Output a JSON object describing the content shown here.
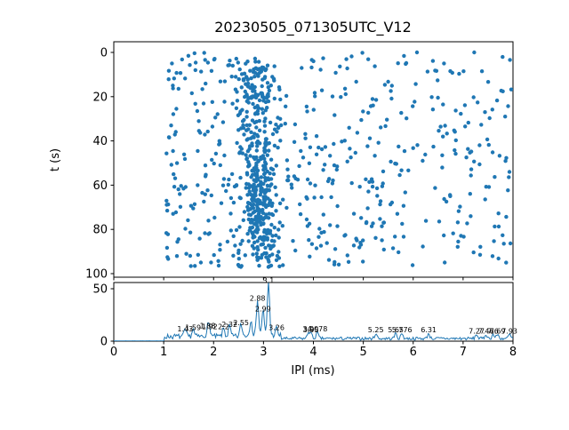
{
  "title": "20230505_071305UTC_V12",
  "figure": {
    "background": "#ffffff",
    "accent": "#1f77b4"
  },
  "scatter_plot": {
    "ylabel": "t (s)",
    "yticks": [
      0,
      20,
      40,
      60,
      80,
      100
    ],
    "xticks": [
      0,
      1,
      2,
      3,
      4,
      5,
      6,
      7,
      8
    ]
  },
  "hist_plot": {
    "xlabel": "IPI (ms)",
    "yticks": [
      0,
      50
    ],
    "xticks": [
      "0",
      "1",
      "2",
      "3",
      "4",
      "5",
      "6",
      "7",
      "8"
    ]
  },
  "chart_data": [
    {
      "type": "scatter",
      "title": "20230505_071305UTC_V12",
      "xlabel": "IPI (ms)",
      "ylabel": "t (s)",
      "xlim": [
        0,
        8
      ],
      "ylim": [
        100,
        0
      ],
      "y_inverted": true,
      "grid": false,
      "point_color": "#1f77b4",
      "point_radius": 2.2,
      "description": "Inter-pulse interval of detected clicks vs time; dense vertical band near IPI 2.8-3.2 ms",
      "distribution": {
        "seed": 42,
        "n_uniform": 520,
        "x_min": 1.05,
        "x_max": 8.0,
        "x_skew": 1.25,
        "t_min": 0,
        "t_max": 97,
        "band": {
          "n": 300,
          "x_mean": 2.85,
          "x_sd": 0.22,
          "t_min": 3,
          "t_max": 97
        },
        "cluster": {
          "n": 130,
          "x_mean": 2.92,
          "x_sd": 0.15,
          "t_mean": 68,
          "t_sd": 16
        }
      }
    },
    {
      "type": "line",
      "xlabel": "IPI (ms)",
      "ylabel": "",
      "xlim": [
        0,
        8
      ],
      "ylim": [
        0,
        60
      ],
      "yticks": [
        0,
        50
      ],
      "grid": false,
      "color": "#1f77b4",
      "noise_seed": 7,
      "step": 0.02,
      "regions": [
        {
          "from": 0.0,
          "to": 1.02,
          "base": 0.15,
          "amp": 0.2
        },
        {
          "from": 1.02,
          "to": 2.6,
          "base": 2.0,
          "amp": 5.0
        },
        {
          "from": 2.6,
          "to": 3.35,
          "base": 3.0,
          "amp": 5.0
        },
        {
          "from": 3.35,
          "to": 8.01,
          "base": 1.0,
          "amp": 3.0
        }
      ],
      "peaks": [
        {
          "x": 1.43,
          "h": 6,
          "label": "1.43"
        },
        {
          "x": 1.59,
          "h": 7,
          "label": "1.59"
        },
        {
          "x": 1.88,
          "h": 9,
          "label": "1.88"
        },
        {
          "x": 1.92,
          "h": 8,
          "label": "1.92"
        },
        {
          "x": 2.2,
          "h": 8,
          "label": "2.2"
        },
        {
          "x": 2.32,
          "h": 10,
          "label": "2.32"
        },
        {
          "x": 2.55,
          "h": 12,
          "label": "2.55"
        },
        {
          "x": 2.75,
          "h": 16,
          "label": ""
        },
        {
          "x": 2.88,
          "h": 35,
          "label": "2.88"
        },
        {
          "x": 2.99,
          "h": 25,
          "label": "2.99"
        },
        {
          "x": 3.1,
          "h": 52,
          "label": "3.1"
        },
        {
          "x": 3.26,
          "h": 7,
          "label": "3.26"
        },
        {
          "x": 3.9,
          "h": 6,
          "label": "3.9"
        },
        {
          "x": 3.95,
          "h": 5,
          "label": "3.95"
        },
        {
          "x": 4.078,
          "h": 6,
          "label": "4.078"
        },
        {
          "x": 5.25,
          "h": 5,
          "label": "5.25"
        },
        {
          "x": 5.65,
          "h": 5,
          "label": "5.65"
        },
        {
          "x": 5.776,
          "h": 5,
          "label": "5.776"
        },
        {
          "x": 6.31,
          "h": 5,
          "label": "6.31"
        },
        {
          "x": 7.27,
          "h": 4,
          "label": "7.27"
        },
        {
          "x": 7.46,
          "h": 4,
          "label": "7.46"
        },
        {
          "x": 7.6,
          "h": 4,
          "label": "7.6"
        },
        {
          "x": 7.69,
          "h": 4,
          "label": "7.69"
        },
        {
          "x": 7.93,
          "h": 4,
          "label": "7.93"
        }
      ]
    }
  ]
}
